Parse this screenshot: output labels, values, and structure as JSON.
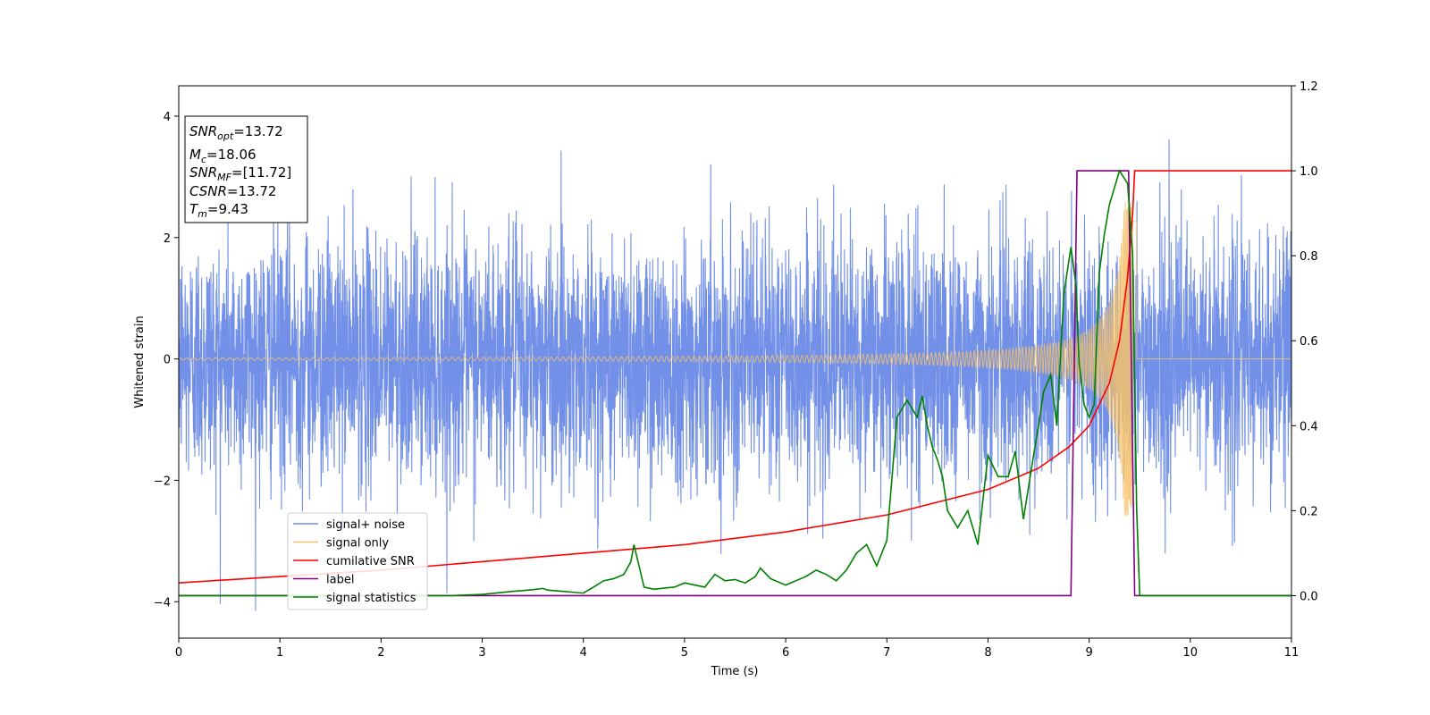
{
  "chart_data": {
    "type": "line",
    "title": "",
    "xlabel": "Time (s)",
    "ylabel": "Whitened strain",
    "xlim": [
      0,
      11
    ],
    "ylim": [
      -4.6,
      4.5
    ],
    "y2lim": [
      -0.1,
      1.2
    ],
    "x_ticks": [
      "0",
      "1",
      "2",
      "3",
      "4",
      "5",
      "6",
      "7",
      "8",
      "9",
      "10",
      "11"
    ],
    "y_ticks": [
      "−4",
      "−2",
      "0",
      "2",
      "4"
    ],
    "y2_ticks": [
      "0.0",
      "0.2",
      "0.4",
      "0.6",
      "0.8",
      "1.0",
      "1.2"
    ],
    "grid": false,
    "legend_position": "lower-left",
    "annotation": {
      "lines": [
        {
          "base": "SNR",
          "sub": "opt",
          "value": "=13.72"
        },
        {
          "base": "M",
          "sub": "c",
          "value": "=18.06"
        },
        {
          "base": "SNR",
          "sub": "MF",
          "value": "=[11.72]"
        },
        {
          "base": "CSNR",
          "sub": "",
          "value": "=13.72"
        },
        {
          "base": "T",
          "sub": "m",
          "value": "=9.43"
        }
      ]
    },
    "series": [
      {
        "name": "signal+ noise",
        "axis": "left",
        "color": "#6a8ae6",
        "kind": "noise",
        "noise_std": 1.0,
        "noise_peak_max": 4.05,
        "noise_peak_min": -4.15
      },
      {
        "name": "signal only",
        "axis": "left",
        "color": "#f5c26b",
        "kind": "chirp",
        "merger_time": 9.43,
        "end_time": 9.47,
        "base_amplitude": 0.02,
        "peak_amplitude": 2.6
      },
      {
        "name": "cumilative SNR",
        "axis": "right",
        "color": "#ff0000",
        "x": [
          0,
          1,
          2,
          3,
          4,
          5,
          6,
          7,
          7.5,
          8,
          8.5,
          8.8,
          9.0,
          9.2,
          9.3,
          9.38,
          9.43,
          9.45,
          11
        ],
        "y": [
          0.03,
          0.045,
          0.06,
          0.08,
          0.1,
          0.12,
          0.15,
          0.19,
          0.22,
          0.25,
          0.3,
          0.35,
          0.4,
          0.5,
          0.6,
          0.75,
          0.9,
          1.0,
          1.0
        ]
      },
      {
        "name": "label",
        "axis": "right",
        "color": "#800080",
        "x": [
          0,
          8.82,
          8.88,
          9.39,
          9.45,
          11
        ],
        "y": [
          0,
          0,
          1.0,
          1.0,
          0,
          0
        ]
      },
      {
        "name": "signal statistics",
        "axis": "right",
        "color": "#008000",
        "x": [
          0,
          1,
          2,
          2.7,
          3.0,
          3.3,
          3.5,
          3.6,
          3.65,
          3.8,
          4.0,
          4.1,
          4.2,
          4.3,
          4.4,
          4.47,
          4.5,
          4.55,
          4.6,
          4.7,
          4.8,
          4.9,
          5.0,
          5.1,
          5.2,
          5.3,
          5.4,
          5.5,
          5.6,
          5.7,
          5.75,
          5.85,
          6.0,
          6.1,
          6.2,
          6.3,
          6.4,
          6.5,
          6.6,
          6.7,
          6.8,
          6.9,
          6.95,
          7.0,
          7.1,
          7.2,
          7.3,
          7.35,
          7.4,
          7.45,
          7.5,
          7.55,
          7.6,
          7.7,
          7.8,
          7.9,
          8.0,
          8.1,
          8.2,
          8.27,
          8.35,
          8.45,
          8.5,
          8.55,
          8.62,
          8.68,
          8.75,
          8.82,
          8.87,
          8.9,
          8.95,
          9.0,
          9.05,
          9.1,
          9.15,
          9.2,
          9.3,
          9.38,
          9.43,
          9.47,
          9.5,
          11
        ],
        "y": [
          0.0,
          0.0,
          0.0,
          0.0,
          0.003,
          0.01,
          0.014,
          0.017,
          0.013,
          0.01,
          0.006,
          0.02,
          0.035,
          0.04,
          0.05,
          0.08,
          0.12,
          0.07,
          0.02,
          0.015,
          0.018,
          0.02,
          0.03,
          0.025,
          0.02,
          0.05,
          0.035,
          0.038,
          0.03,
          0.045,
          0.065,
          0.04,
          0.025,
          0.035,
          0.045,
          0.06,
          0.05,
          0.035,
          0.06,
          0.1,
          0.12,
          0.07,
          0.1,
          0.13,
          0.42,
          0.46,
          0.42,
          0.47,
          0.4,
          0.35,
          0.32,
          0.28,
          0.2,
          0.16,
          0.2,
          0.12,
          0.33,
          0.28,
          0.28,
          0.34,
          0.18,
          0.33,
          0.4,
          0.48,
          0.52,
          0.4,
          0.71,
          0.82,
          0.73,
          0.55,
          0.45,
          0.42,
          0.45,
          0.76,
          0.85,
          0.92,
          1.0,
          0.97,
          0.8,
          0.2,
          0.0,
          0.0
        ]
      }
    ]
  }
}
